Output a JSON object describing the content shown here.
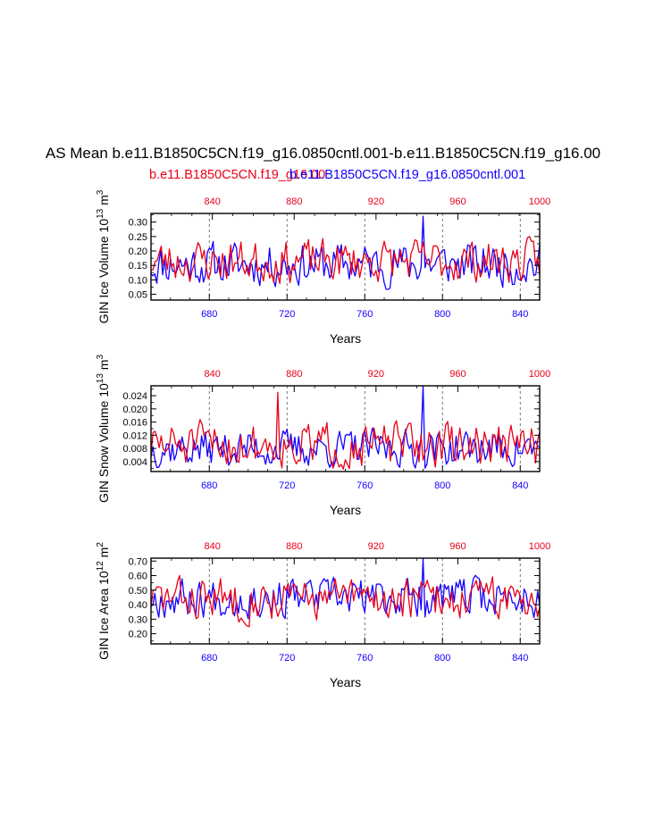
{
  "title": "AS Mean b.e11.B1850C5CN.f19_g16.0850cntl.001-b.e11.B1850C5CN.f19_g16.00",
  "legend": {
    "red": "b.e11.B1850C5CN.f19_g16.00",
    "blue": "b.e11.B1850C5CN.f19_g16.0850cntl.001"
  },
  "colors": {
    "red": "#e8001a",
    "blue": "#1400ff",
    "axis": "#000000",
    "grid": "#555555"
  },
  "chart_data": [
    {
      "type": "line",
      "ylabel": "GIN Ice Volume 10",
      "ylabel_exp": "13",
      "ylabel_unit": " m",
      "ylabel_unit_exp": "3",
      "xlabel": "Years",
      "ylim": [
        0.03,
        0.33
      ],
      "yticks": [
        0.05,
        0.1,
        0.15,
        0.2,
        0.25,
        0.3
      ],
      "ytick_labels": [
        "0.05",
        "0.10",
        "0.15",
        "0.20",
        "0.25",
        "0.30"
      ],
      "xlim_bottom": [
        650,
        850
      ],
      "xticks_bottom": [
        680,
        720,
        760,
        800,
        840
      ],
      "xlim_top": [
        810,
        1000
      ],
      "xticks_top": [
        840,
        880,
        920,
        960,
        1000
      ],
      "series": [
        {
          "name": "b.e11.B1850C5CN.f19_g16.0850cntl.001",
          "axis": "bottom",
          "color": "blue",
          "seed": 11,
          "base": 0.155,
          "amp": 0.065,
          "min": 0.04,
          "max": 0.32,
          "spike_at": 790,
          "spike_val": 0.32
        },
        {
          "name": "b.e11.B1850C5CN.f19_g16.00",
          "axis": "top",
          "color": "red",
          "seed": 23,
          "base": 0.165,
          "amp": 0.065,
          "min": 0.05,
          "max": 0.3
        }
      ]
    },
    {
      "type": "line",
      "ylabel": "GIN Snow Volume 10",
      "ylabel_exp": "13",
      "ylabel_unit": " m",
      "ylabel_unit_exp": "3",
      "xlabel": "Years",
      "ylim": [
        0.001,
        0.027
      ],
      "yticks": [
        0.004,
        0.008,
        0.012,
        0.016,
        0.02,
        0.024
      ],
      "ytick_labels": [
        "0.004",
        "0.008",
        "0.012",
        "0.016",
        "0.020",
        "0.024"
      ],
      "xlim_bottom": [
        650,
        850
      ],
      "xticks_bottom": [
        680,
        720,
        760,
        800,
        840
      ],
      "xlim_top": [
        810,
        1000
      ],
      "xticks_top": [
        840,
        880,
        920,
        960,
        1000
      ],
      "series": [
        {
          "name": "b.e11.B1850C5CN.f19_g16.0850cntl.001",
          "axis": "bottom",
          "color": "blue",
          "seed": 37,
          "base": 0.008,
          "amp": 0.005,
          "min": 0.002,
          "max": 0.027,
          "spike_at": 790,
          "spike_val": 0.027
        },
        {
          "name": "b.e11.B1850C5CN.f19_g16.00",
          "axis": "top",
          "color": "red",
          "seed": 51,
          "base": 0.009,
          "amp": 0.006,
          "min": 0.001,
          "max": 0.025,
          "spike_at": 872,
          "spike_val": 0.025
        }
      ]
    },
    {
      "type": "line",
      "ylabel": "GIN Ice Area 10",
      "ylabel_exp": "12",
      "ylabel_unit": " m",
      "ylabel_unit_exp": "2",
      "xlabel": "Years",
      "ylim": [
        0.13,
        0.72
      ],
      "yticks": [
        0.2,
        0.3,
        0.4,
        0.5,
        0.6,
        0.7
      ],
      "ytick_labels": [
        "0.20",
        "0.30",
        "0.40",
        "0.50",
        "0.60",
        "0.70"
      ],
      "xlim_bottom": [
        650,
        850
      ],
      "xticks_bottom": [
        680,
        720,
        760,
        800,
        840
      ],
      "xlim_top": [
        810,
        1000
      ],
      "xticks_top": [
        840,
        880,
        920,
        960,
        1000
      ],
      "series": [
        {
          "name": "b.e11.B1850C5CN.f19_g16.0850cntl.001",
          "axis": "bottom",
          "color": "blue",
          "seed": 67,
          "base": 0.45,
          "amp": 0.12,
          "min": 0.15,
          "max": 0.72,
          "spike_at": 790,
          "spike_val": 0.72
        },
        {
          "name": "b.e11.B1850C5CN.f19_g16.00",
          "axis": "top",
          "color": "red",
          "seed": 83,
          "base": 0.44,
          "amp": 0.13,
          "min": 0.17,
          "max": 0.7
        }
      ]
    }
  ]
}
